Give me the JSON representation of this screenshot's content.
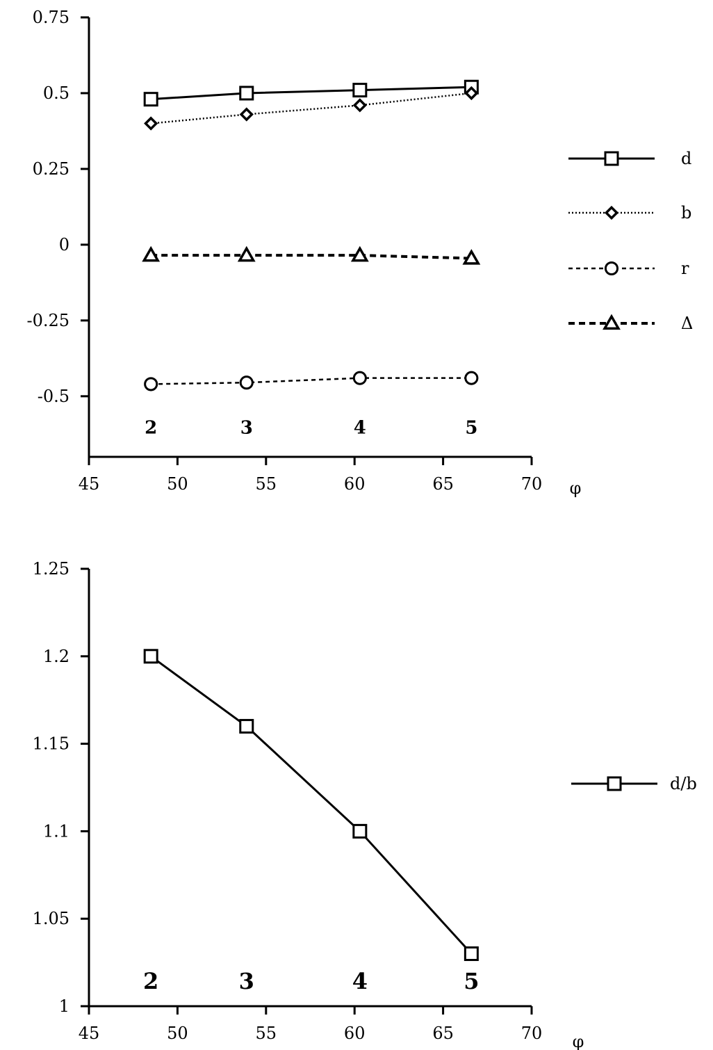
{
  "chart_data": [
    {
      "type": "line",
      "x_axis_label": "φ",
      "x_ticks": [
        45,
        50,
        55,
        60,
        65,
        70
      ],
      "xlim": [
        45,
        70
      ],
      "y_ticks": [
        "0.75",
        "0.5",
        "0.25",
        "0",
        "-0.25",
        "-0.5"
      ],
      "y_tick_values": [
        0.75,
        0.5,
        0.25,
        0,
        -0.25,
        -0.5
      ],
      "ylim": [
        -0.7,
        0.75
      ],
      "x": [
        48.5,
        53.9,
        60.3,
        66.6
      ],
      "point_labels": [
        "2",
        "3",
        "4",
        "5"
      ],
      "point_label_y": -0.6,
      "legend_position": "right",
      "series": [
        {
          "name": "d",
          "values": [
            0.48,
            0.5,
            0.51,
            0.52
          ],
          "marker": "square",
          "line": "solid"
        },
        {
          "name": "b",
          "values": [
            0.4,
            0.43,
            0.46,
            0.5
          ],
          "marker": "diamond",
          "line": "dotted"
        },
        {
          "name": "r",
          "values": [
            -0.46,
            -0.455,
            -0.44,
            -0.44
          ],
          "marker": "circle",
          "line": "dashed"
        },
        {
          "name": "Δ",
          "values": [
            -0.035,
            -0.035,
            -0.035,
            -0.045
          ],
          "marker": "triangle",
          "line": "bold-dashed"
        }
      ]
    },
    {
      "type": "line",
      "x_axis_label": "φ",
      "x_ticks": [
        45,
        50,
        55,
        60,
        65,
        70
      ],
      "xlim": [
        45,
        70
      ],
      "y_ticks": [
        "1.25",
        "1.2",
        "1.15",
        "1.1",
        "1.05",
        "1"
      ],
      "y_tick_values": [
        1.25,
        1.2,
        1.15,
        1.1,
        1.05,
        1.0
      ],
      "ylim": [
        1.0,
        1.25
      ],
      "x": [
        48.5,
        53.9,
        60.3,
        66.6
      ],
      "point_labels": [
        "2",
        "3",
        "4",
        "5"
      ],
      "point_label_y": 1.014,
      "legend_position": "right",
      "series": [
        {
          "name": "d/b",
          "values": [
            1.2,
            1.16,
            1.1,
            1.03
          ],
          "marker": "square",
          "line": "solid"
        }
      ]
    }
  ]
}
